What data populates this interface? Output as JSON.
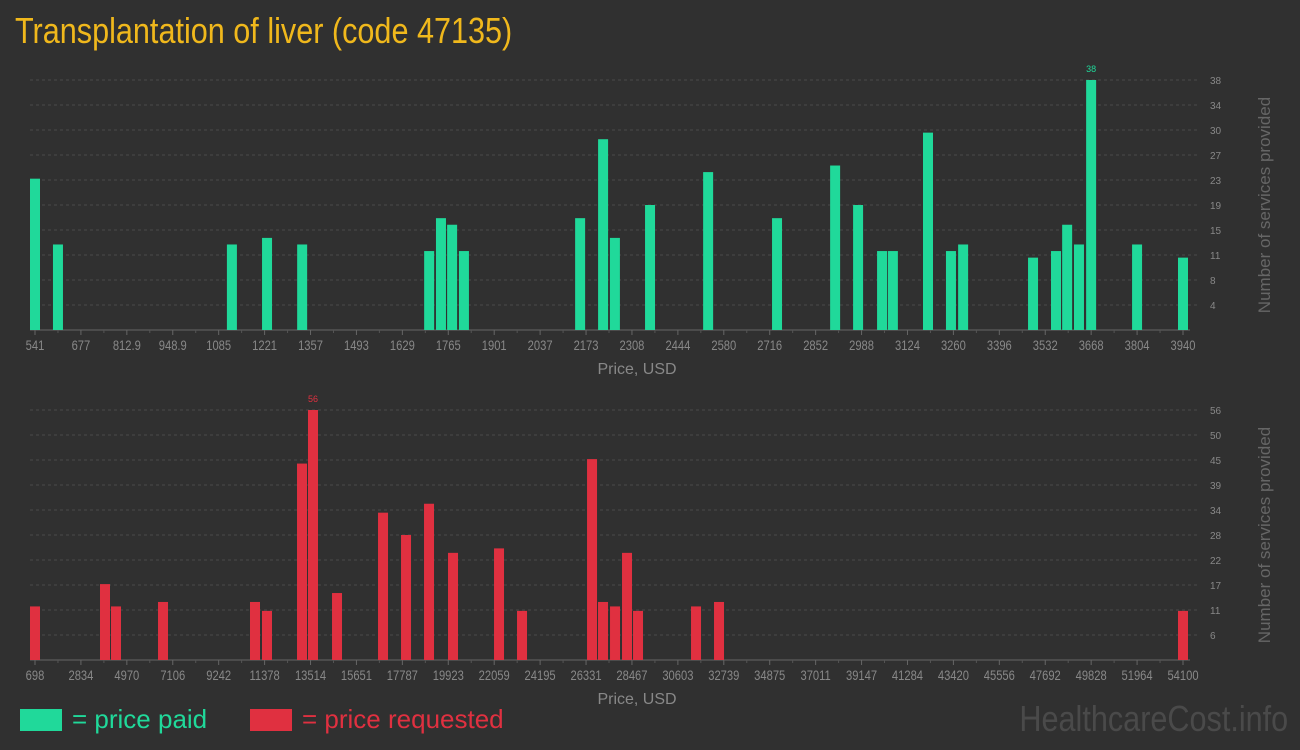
{
  "title": "Transplantation of liver (code 47135)",
  "watermark": "HealthcareCost.info",
  "legend": [
    {
      "label": "= price paid",
      "color": "#20d99a"
    },
    {
      "label": "= price requested",
      "color": "#e03040"
    }
  ],
  "chart_data": [
    {
      "type": "bar",
      "xlabel": "Price, USD",
      "ylabel": "Number of services provided",
      "color": "#20d99a",
      "x_ticks": [
        "541",
        "677",
        "812.9",
        "948.9",
        "1085",
        "1221",
        "1357",
        "1493",
        "1629",
        "1765",
        "1901",
        "2037",
        "2173",
        "2308",
        "2444",
        "2580",
        "2716",
        "2852",
        "2988",
        "3124",
        "3260",
        "3396",
        "3532",
        "3668",
        "3804",
        "3940"
      ],
      "xlim": [
        541,
        3940
      ],
      "y_ticks": [
        4,
        8,
        11,
        15,
        19,
        23,
        27,
        30,
        34,
        38
      ],
      "ylim": [
        0,
        38
      ],
      "grid": true,
      "max_label": "38",
      "points": [
        [
          541,
          23
        ],
        [
          609,
          13
        ],
        [
          1124,
          13
        ],
        [
          1228,
          14
        ],
        [
          1332,
          13
        ],
        [
          1708,
          12
        ],
        [
          1743,
          17
        ],
        [
          1776,
          16
        ],
        [
          1811,
          12
        ],
        [
          2155,
          17
        ],
        [
          2223,
          29
        ],
        [
          2258,
          14
        ],
        [
          2362,
          19
        ],
        [
          2534,
          24
        ],
        [
          2738,
          17
        ],
        [
          2910,
          25
        ],
        [
          2978,
          19
        ],
        [
          3049,
          12
        ],
        [
          3081,
          12
        ],
        [
          3185,
          30
        ],
        [
          3253,
          12
        ],
        [
          3289,
          13
        ],
        [
          3496,
          11
        ],
        [
          3564,
          12
        ],
        [
          3597,
          16
        ],
        [
          3632,
          13
        ],
        [
          3668,
          38
        ],
        [
          3804,
          13
        ],
        [
          3940,
          11
        ]
      ]
    },
    {
      "type": "bar",
      "xlabel": "Price, USD",
      "ylabel": "Number of services provided",
      "color": "#e03040",
      "x_ticks": [
        "698",
        "2834",
        "4970",
        "7106",
        "9242",
        "11378",
        "13514",
        "15651",
        "17787",
        "19923",
        "22059",
        "24195",
        "26331",
        "28467",
        "30603",
        "32739",
        "34875",
        "37011",
        "39147",
        "41284",
        "43420",
        "45556",
        "47692",
        "49828",
        "51964",
        "54100"
      ],
      "xlim": [
        698,
        54100
      ],
      "y_ticks": [
        6,
        11,
        17,
        22,
        28,
        34,
        39,
        45,
        50,
        56
      ],
      "ylim": [
        0,
        56
      ],
      "grid": true,
      "max_label": "56",
      "points": [
        [
          698,
          12
        ],
        [
          3954,
          17
        ],
        [
          4466,
          12
        ],
        [
          6653,
          13
        ],
        [
          10932,
          13
        ],
        [
          11490,
          11
        ],
        [
          13119,
          44
        ],
        [
          13630,
          56
        ],
        [
          14747,
          15
        ],
        [
          16887,
          33
        ],
        [
          17957,
          28
        ],
        [
          19027,
          35
        ],
        [
          20143,
          24
        ],
        [
          22283,
          25
        ],
        [
          23353,
          11
        ],
        [
          26610,
          45
        ],
        [
          27121,
          13
        ],
        [
          27679,
          12
        ],
        [
          28237,
          24
        ],
        [
          28749,
          11
        ],
        [
          31447,
          12
        ],
        [
          32517,
          13
        ],
        [
          54100,
          11
        ]
      ]
    }
  ]
}
